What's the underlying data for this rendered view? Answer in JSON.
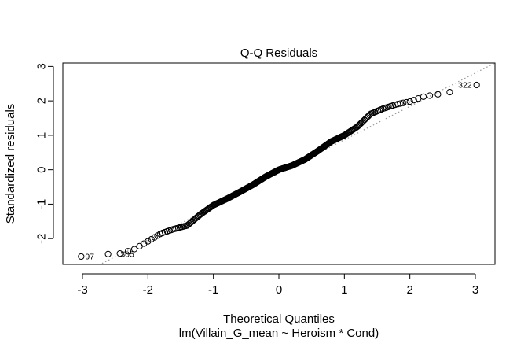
{
  "chart_data": {
    "type": "scatter",
    "title": "Q-Q Residuals",
    "xlabel": "Theoretical Quantiles",
    "ylabel": "Standardized residuals",
    "subtitle": "lm(Villain_G_mean ~ Heroism * Cond)",
    "xlim": [
      -3.3,
      3.3
    ],
    "ylim": [
      -2.75,
      3.1
    ],
    "x_ticks": [
      -3,
      -2,
      -1,
      0,
      1,
      2,
      3
    ],
    "y_ticks": [
      -2,
      -1,
      0,
      1,
      2,
      3
    ],
    "x_tick_labels": [
      "-3",
      "-2",
      "-1",
      "0",
      "1",
      "2",
      "3"
    ],
    "y_tick_labels": [
      "-2",
      "-1",
      "0",
      "1",
      "2",
      "3"
    ],
    "grid": false,
    "reference_line": {
      "style": "dotted",
      "color": "#9a9a9a",
      "from": [
        -2.7,
        -2.72
      ],
      "to": [
        3.3,
        3.1
      ]
    },
    "n_points": 330,
    "point_labels": [
      {
        "label": "322",
        "x": 3.02,
        "y": 2.46
      },
      {
        "label": "97",
        "x": -3.02,
        "y": -2.52
      },
      {
        "label": "305",
        "x": -2.48,
        "y": -2.45
      }
    ],
    "curve_knots": [
      [
        -3.02,
        -2.52
      ],
      [
        -2.72,
        -2.45
      ],
      [
        -2.55,
        -2.45
      ],
      [
        -2.4,
        -2.43
      ],
      [
        -2.2,
        -2.3
      ],
      [
        -2.0,
        -2.08
      ],
      [
        -1.8,
        -1.85
      ],
      [
        -1.6,
        -1.72
      ],
      [
        -1.4,
        -1.62
      ],
      [
        -1.2,
        -1.3
      ],
      [
        -1.0,
        -1.03
      ],
      [
        -0.8,
        -0.85
      ],
      [
        -0.6,
        -0.65
      ],
      [
        -0.4,
        -0.44
      ],
      [
        -0.2,
        -0.2
      ],
      [
        0.0,
        0.0
      ],
      [
        0.2,
        0.12
      ],
      [
        0.4,
        0.3
      ],
      [
        0.6,
        0.55
      ],
      [
        0.8,
        0.82
      ],
      [
        1.0,
        1.0
      ],
      [
        1.2,
        1.25
      ],
      [
        1.4,
        1.62
      ],
      [
        1.6,
        1.78
      ],
      [
        1.8,
        1.9
      ],
      [
        2.0,
        1.98
      ],
      [
        2.2,
        2.12
      ],
      [
        2.4,
        2.18
      ],
      [
        2.6,
        2.25
      ],
      [
        2.8,
        2.33
      ],
      [
        3.02,
        2.46
      ]
    ],
    "point_color": "#000000"
  }
}
